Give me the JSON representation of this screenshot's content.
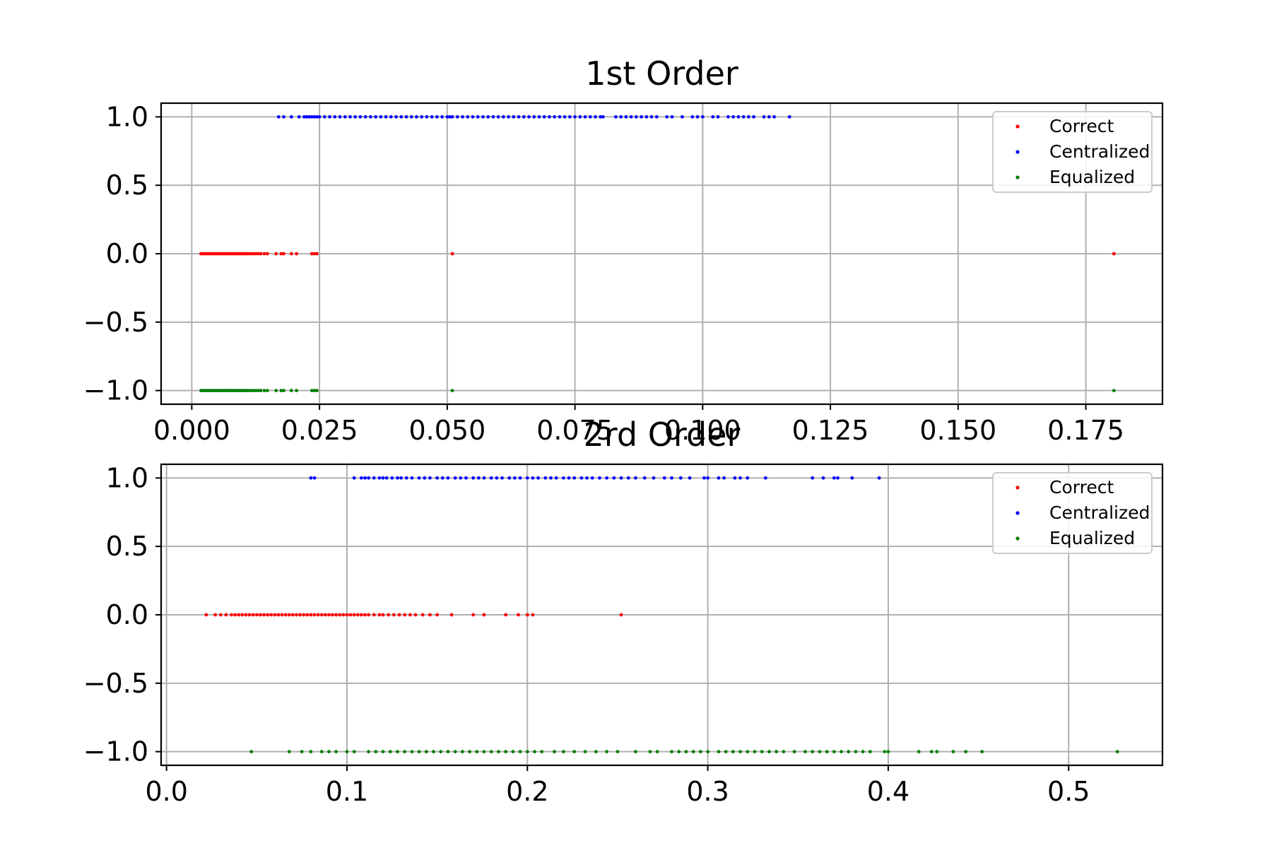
{
  "chart_data": [
    {
      "type": "scatter",
      "title": "1st Order",
      "xlabel": "",
      "ylabel": "",
      "xlim": [
        -0.006,
        0.19
      ],
      "ylim": [
        -1.1,
        1.1
      ],
      "xticks": [
        0.0,
        0.025,
        0.05,
        0.075,
        0.1,
        0.125,
        0.15,
        0.175
      ],
      "xtick_labels": [
        "0.000",
        "0.025",
        "0.050",
        "0.075",
        "0.100",
        "0.125",
        "0.150",
        "0.175"
      ],
      "yticks": [
        1.0,
        0.5,
        0.0,
        -0.5,
        -1.0
      ],
      "ytick_labels": [
        "1.0",
        "0.5",
        "0.0",
        "−0.5",
        "−1.0"
      ],
      "grid": true,
      "legend_position": "top-right",
      "series": [
        {
          "name": "Correct",
          "color": "#ff0000",
          "y": 0,
          "x": [
            0.0018,
            0.0022,
            0.0026,
            0.003,
            0.0034,
            0.0038,
            0.0042,
            0.0046,
            0.005,
            0.0054,
            0.0058,
            0.0062,
            0.0066,
            0.007,
            0.0074,
            0.0078,
            0.0082,
            0.0086,
            0.009,
            0.0094,
            0.0098,
            0.0102,
            0.0106,
            0.011,
            0.0115,
            0.012,
            0.0125,
            0.013,
            0.0135,
            0.0142,
            0.0148,
            0.0165,
            0.0175,
            0.018,
            0.0195,
            0.0205,
            0.0235,
            0.024,
            0.0245,
            0.051,
            0.1805
          ]
        },
        {
          "name": "Centralized",
          "color": "#0000ff",
          "y": 1,
          "x": [
            0.017,
            0.018,
            0.0195,
            0.021,
            0.022,
            0.0225,
            0.023,
            0.0235,
            0.024,
            0.0245,
            0.025,
            0.026,
            0.027,
            0.028,
            0.029,
            0.03,
            0.031,
            0.032,
            0.033,
            0.034,
            0.035,
            0.036,
            0.037,
            0.038,
            0.039,
            0.04,
            0.041,
            0.042,
            0.043,
            0.044,
            0.045,
            0.046,
            0.047,
            0.048,
            0.049,
            0.05,
            0.0505,
            0.051,
            0.052,
            0.053,
            0.054,
            0.055,
            0.056,
            0.057,
            0.058,
            0.059,
            0.06,
            0.061,
            0.062,
            0.063,
            0.064,
            0.065,
            0.066,
            0.067,
            0.068,
            0.069,
            0.07,
            0.071,
            0.072,
            0.073,
            0.074,
            0.075,
            0.076,
            0.077,
            0.078,
            0.079,
            0.08,
            0.0805,
            0.083,
            0.084,
            0.085,
            0.086,
            0.087,
            0.088,
            0.089,
            0.09,
            0.091,
            0.093,
            0.094,
            0.096,
            0.098,
            0.099,
            0.1,
            0.102,
            0.103,
            0.105,
            0.106,
            0.107,
            0.108,
            0.109,
            0.11,
            0.112,
            0.113,
            0.114,
            0.117
          ]
        },
        {
          "name": "Equalized",
          "color": "#008000",
          "y": -1,
          "x": [
            0.0018,
            0.0022,
            0.0026,
            0.003,
            0.0034,
            0.0038,
            0.0042,
            0.0046,
            0.005,
            0.0054,
            0.0058,
            0.0062,
            0.0066,
            0.007,
            0.0074,
            0.0078,
            0.0082,
            0.0086,
            0.009,
            0.0094,
            0.0098,
            0.0102,
            0.0106,
            0.011,
            0.0115,
            0.012,
            0.0125,
            0.013,
            0.0135,
            0.0142,
            0.0148,
            0.0165,
            0.0175,
            0.018,
            0.0195,
            0.0205,
            0.0235,
            0.024,
            0.0245,
            0.051,
            0.1805
          ]
        }
      ]
    },
    {
      "type": "scatter",
      "title": "2rd Order",
      "xlabel": "",
      "ylabel": "",
      "xlim": [
        -0.003,
        0.552
      ],
      "ylim": [
        -1.1,
        1.1
      ],
      "xticks": [
        0.0,
        0.1,
        0.2,
        0.3,
        0.4,
        0.5
      ],
      "xtick_labels": [
        "0.0",
        "0.1",
        "0.2",
        "0.3",
        "0.4",
        "0.5"
      ],
      "yticks": [
        1.0,
        0.5,
        0.0,
        -0.5,
        -1.0
      ],
      "ytick_labels": [
        "1.0",
        "0.5",
        "0.0",
        "−0.5",
        "−1.0"
      ],
      "grid": true,
      "legend_position": "top-right",
      "series": [
        {
          "name": "Correct",
          "color": "#ff0000",
          "y": 0,
          "x": [
            0.022,
            0.027,
            0.03,
            0.033,
            0.036,
            0.038,
            0.04,
            0.042,
            0.044,
            0.046,
            0.048,
            0.05,
            0.052,
            0.054,
            0.056,
            0.058,
            0.06,
            0.062,
            0.064,
            0.066,
            0.068,
            0.07,
            0.072,
            0.074,
            0.076,
            0.078,
            0.08,
            0.082,
            0.084,
            0.086,
            0.088,
            0.09,
            0.092,
            0.094,
            0.096,
            0.098,
            0.1,
            0.102,
            0.104,
            0.106,
            0.108,
            0.11,
            0.112,
            0.115,
            0.118,
            0.12,
            0.123,
            0.126,
            0.129,
            0.132,
            0.135,
            0.138,
            0.142,
            0.146,
            0.15,
            0.158,
            0.17,
            0.176,
            0.188,
            0.195,
            0.2,
            0.203,
            0.252
          ]
        },
        {
          "name": "Centralized",
          "color": "#0000ff",
          "y": 1,
          "x": [
            0.08,
            0.082,
            0.104,
            0.108,
            0.11,
            0.112,
            0.115,
            0.118,
            0.12,
            0.122,
            0.125,
            0.128,
            0.13,
            0.133,
            0.136,
            0.14,
            0.143,
            0.146,
            0.15,
            0.153,
            0.156,
            0.16,
            0.163,
            0.166,
            0.17,
            0.173,
            0.176,
            0.18,
            0.183,
            0.186,
            0.19,
            0.193,
            0.196,
            0.2,
            0.203,
            0.206,
            0.21,
            0.213,
            0.216,
            0.22,
            0.223,
            0.226,
            0.23,
            0.233,
            0.236,
            0.24,
            0.244,
            0.248,
            0.252,
            0.256,
            0.26,
            0.265,
            0.27,
            0.276,
            0.28,
            0.285,
            0.29,
            0.298,
            0.3,
            0.306,
            0.309,
            0.315,
            0.318,
            0.322,
            0.332,
            0.358,
            0.364,
            0.37,
            0.372,
            0.38,
            0.395
          ]
        },
        {
          "name": "Equalized",
          "color": "#008000",
          "y": -1,
          "x": [
            0.047,
            0.068,
            0.075,
            0.08,
            0.086,
            0.09,
            0.094,
            0.1,
            0.104,
            0.112,
            0.116,
            0.12,
            0.124,
            0.128,
            0.132,
            0.136,
            0.14,
            0.144,
            0.148,
            0.152,
            0.156,
            0.16,
            0.164,
            0.168,
            0.172,
            0.176,
            0.18,
            0.184,
            0.188,
            0.192,
            0.196,
            0.2,
            0.204,
            0.208,
            0.215,
            0.22,
            0.226,
            0.232,
            0.238,
            0.244,
            0.25,
            0.26,
            0.268,
            0.272,
            0.28,
            0.284,
            0.288,
            0.292,
            0.296,
            0.3,
            0.306,
            0.31,
            0.314,
            0.318,
            0.322,
            0.326,
            0.33,
            0.334,
            0.338,
            0.342,
            0.348,
            0.354,
            0.358,
            0.362,
            0.366,
            0.37,
            0.374,
            0.378,
            0.382,
            0.386,
            0.39,
            0.398,
            0.4,
            0.417,
            0.424,
            0.427,
            0.436,
            0.443,
            0.452,
            0.527
          ]
        }
      ]
    }
  ]
}
